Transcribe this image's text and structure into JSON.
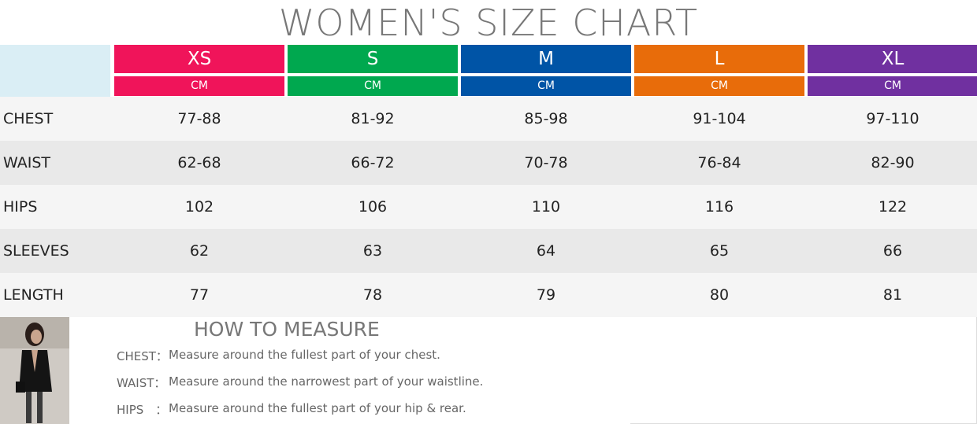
{
  "header": {
    "title": "WOMEN'S SIZE CHART"
  },
  "table": {
    "columns": [
      {
        "label": "XS",
        "unit": "CM"
      },
      {
        "label": "S",
        "unit": "CM"
      },
      {
        "label": "M",
        "unit": "CM"
      },
      {
        "label": "L",
        "unit": "CM"
      },
      {
        "label": "XL",
        "unit": "CM"
      }
    ],
    "rows": [
      [
        "CHEST",
        "77-88",
        "81-92",
        "85-98",
        "91-104",
        "97-110"
      ],
      [
        "WAIST",
        "62-68",
        "66-72",
        "70-78",
        "76-84",
        "82-90"
      ],
      [
        "HIPS",
        "102",
        "106",
        "110",
        "116",
        "122"
      ],
      [
        "SLEEVES",
        "62",
        "63",
        "64",
        "65",
        "66"
      ],
      [
        "LENGTH",
        "77",
        "78",
        "79",
        "80",
        "81"
      ]
    ]
  },
  "measure": {
    "title": "HOW TO MEASURE",
    "items": [
      {
        "label": "CHEST：",
        "text": "Measure around the fullest part of your chest."
      },
      {
        "label": "WAIST：",
        "text": "Measure around the narrowest part of your waistline."
      },
      {
        "label": "HIPS　：",
        "text": "Measure around the fullest part of your hip & rear."
      }
    ]
  }
}
